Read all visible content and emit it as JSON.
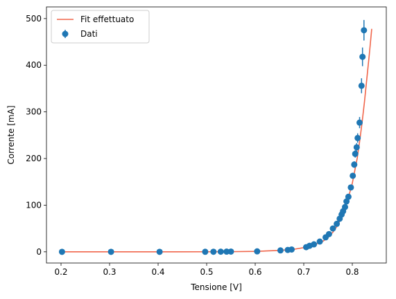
{
  "chart_data": {
    "type": "scatter",
    "xlabel": "Tensione [V]",
    "ylabel": "Corrente [mA]",
    "xlim": [
      0.17,
      0.87
    ],
    "ylim": [
      -24,
      525
    ],
    "xticks": [
      0.2,
      0.3,
      0.4,
      0.5,
      0.6,
      0.7,
      0.8
    ],
    "yticks": [
      0,
      100,
      200,
      300,
      400,
      500
    ],
    "grid": false,
    "legend_position": "upper-left",
    "legend": [
      "Fit effettuato",
      "Dati"
    ],
    "colors": {
      "fit": "#f0654a",
      "data": "#1f77b4"
    },
    "series": [
      {
        "name": "Dati",
        "kind": "errorbar",
        "x": [
          0.202,
          0.303,
          0.403,
          0.497,
          0.514,
          0.529,
          0.541,
          0.55,
          0.604,
          0.652,
          0.667,
          0.675,
          0.705,
          0.712,
          0.721,
          0.733,
          0.745,
          0.752,
          0.76,
          0.768,
          0.774,
          0.778,
          0.781,
          0.785,
          0.788,
          0.792,
          0.797,
          0.801,
          0.804,
          0.806,
          0.809,
          0.811,
          0.815,
          0.819,
          0.821,
          0.824
        ],
        "y": [
          0.0,
          0.0,
          0.0,
          0.1,
          0.2,
          0.3,
          0.4,
          0.5,
          1.0,
          3.0,
          4.0,
          5.0,
          10.0,
          13.0,
          16.0,
          22.0,
          31.0,
          38.0,
          50.0,
          60.0,
          71.0,
          80.0,
          87.0,
          96.0,
          108.0,
          118.0,
          138.0,
          163.0,
          187.0,
          210.0,
          224.0,
          244.0,
          277.0,
          356.0,
          418.0,
          475.0
        ],
        "yerr": [
          0.2,
          0.2,
          0.2,
          0.2,
          0.2,
          0.2,
          0.2,
          0.2,
          0.2,
          0.3,
          0.3,
          0.3,
          1,
          1,
          1,
          1,
          1.5,
          2,
          2,
          3,
          3,
          3,
          4,
          4,
          4,
          5,
          5,
          6,
          7,
          8,
          9,
          10,
          12,
          16,
          20,
          22
        ]
      },
      {
        "name": "Fit effettuato",
        "kind": "line",
        "x": [
          0.2,
          0.3,
          0.4,
          0.5,
          0.55,
          0.6,
          0.65,
          0.68,
          0.7,
          0.72,
          0.74,
          0.75,
          0.76,
          0.77,
          0.78,
          0.79,
          0.8,
          0.81,
          0.815,
          0.82,
          0.825,
          0.83,
          0.835,
          0.84
        ],
        "y": [
          0.0,
          0.0,
          0.0,
          0.1,
          0.3,
          0.9,
          3.0,
          5.5,
          9.0,
          14.0,
          23.0,
          31.0,
          42.0,
          57.0,
          79.0,
          109.0,
          147.0,
          200.0,
          236.0,
          276.0,
          321.0,
          372.0,
          423.0,
          478.0
        ]
      }
    ]
  }
}
